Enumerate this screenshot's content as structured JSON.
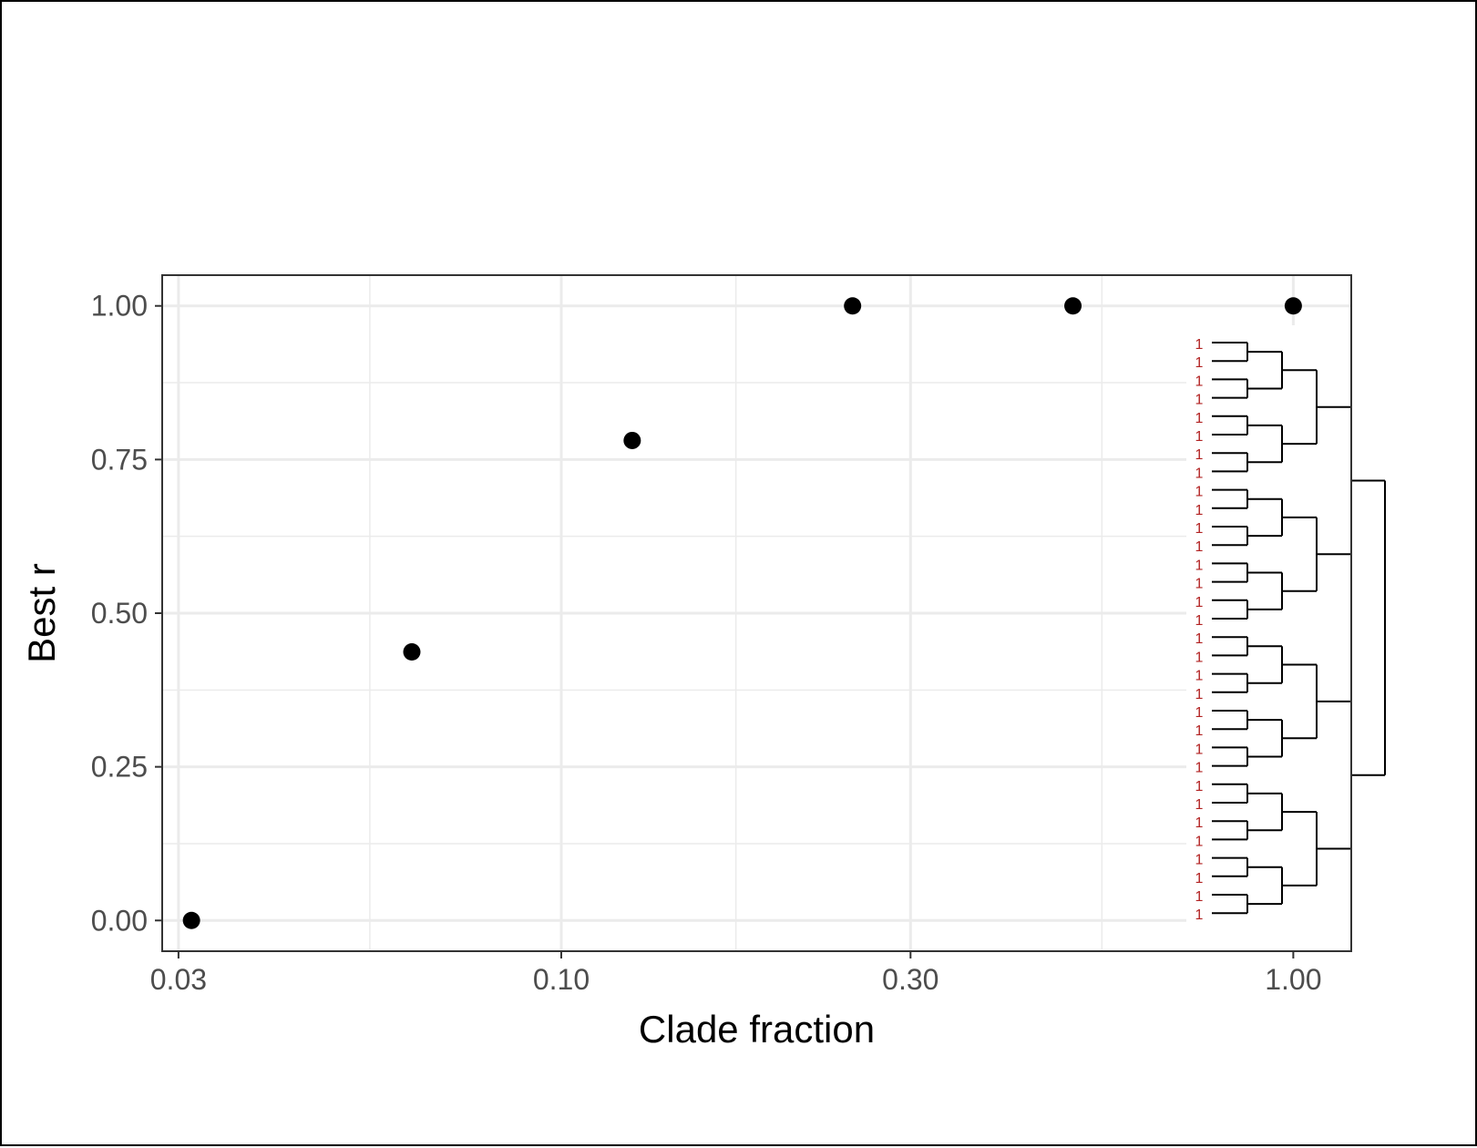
{
  "chart_data": {
    "type": "scatter",
    "title": "",
    "xlabel": "Clade fraction",
    "ylabel": "Best r",
    "x_scale": "log",
    "xlim": [
      0.0285,
      1.2
    ],
    "ylim": [
      -0.05,
      1.05
    ],
    "x_ticks": [
      {
        "value": 0.03,
        "label": "0.03"
      },
      {
        "value": 0.1,
        "label": "0.10"
      },
      {
        "value": 0.3,
        "label": "0.30"
      },
      {
        "value": 1.0,
        "label": "1.00"
      }
    ],
    "y_ticks": [
      {
        "value": 0.0,
        "label": "0.00"
      },
      {
        "value": 0.25,
        "label": "0.25"
      },
      {
        "value": 0.5,
        "label": "0.50"
      },
      {
        "value": 0.75,
        "label": "0.75"
      },
      {
        "value": 1.0,
        "label": "1.00"
      }
    ],
    "points": [
      {
        "x": 0.03125,
        "y": 0.0
      },
      {
        "x": 0.0625,
        "y": 0.437
      },
      {
        "x": 0.125,
        "y": 0.781
      },
      {
        "x": 0.25,
        "y": 1.0
      },
      {
        "x": 0.5,
        "y": 1.0
      },
      {
        "x": 1.0,
        "y": 1.0
      }
    ],
    "grid": true,
    "point_color": "#000000",
    "inset": {
      "type": "dendrogram",
      "leaves": 32,
      "leaf_label": "1",
      "leaf_label_color": "#b22222"
    }
  }
}
